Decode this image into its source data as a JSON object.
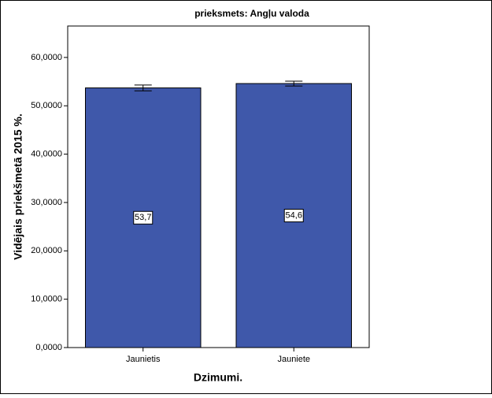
{
  "chart_data": {
    "type": "bar",
    "title": "prieksmets: Angļu valoda",
    "xlabel": "Dzimumi.",
    "ylabel": "Vidējais priekšmetā 2015 %.",
    "categories": [
      "Jaunietis",
      "Jauniete"
    ],
    "values": [
      53.7,
      54.6
    ],
    "value_labels": [
      "53,7",
      "54,6"
    ],
    "errors": [
      0.6,
      0.5
    ],
    "color": "#3f58aa",
    "ylim": [
      0,
      66.5
    ],
    "yticks": [
      {
        "value": 0,
        "label": "0,0000"
      },
      {
        "value": 10,
        "label": "10,0000"
      },
      {
        "value": 20,
        "label": "20,0000"
      },
      {
        "value": 30,
        "label": "30,0000"
      },
      {
        "value": 40,
        "label": "40,0000"
      },
      {
        "value": 50,
        "label": "50,0000"
      },
      {
        "value": 60,
        "label": "60,0000"
      }
    ]
  }
}
